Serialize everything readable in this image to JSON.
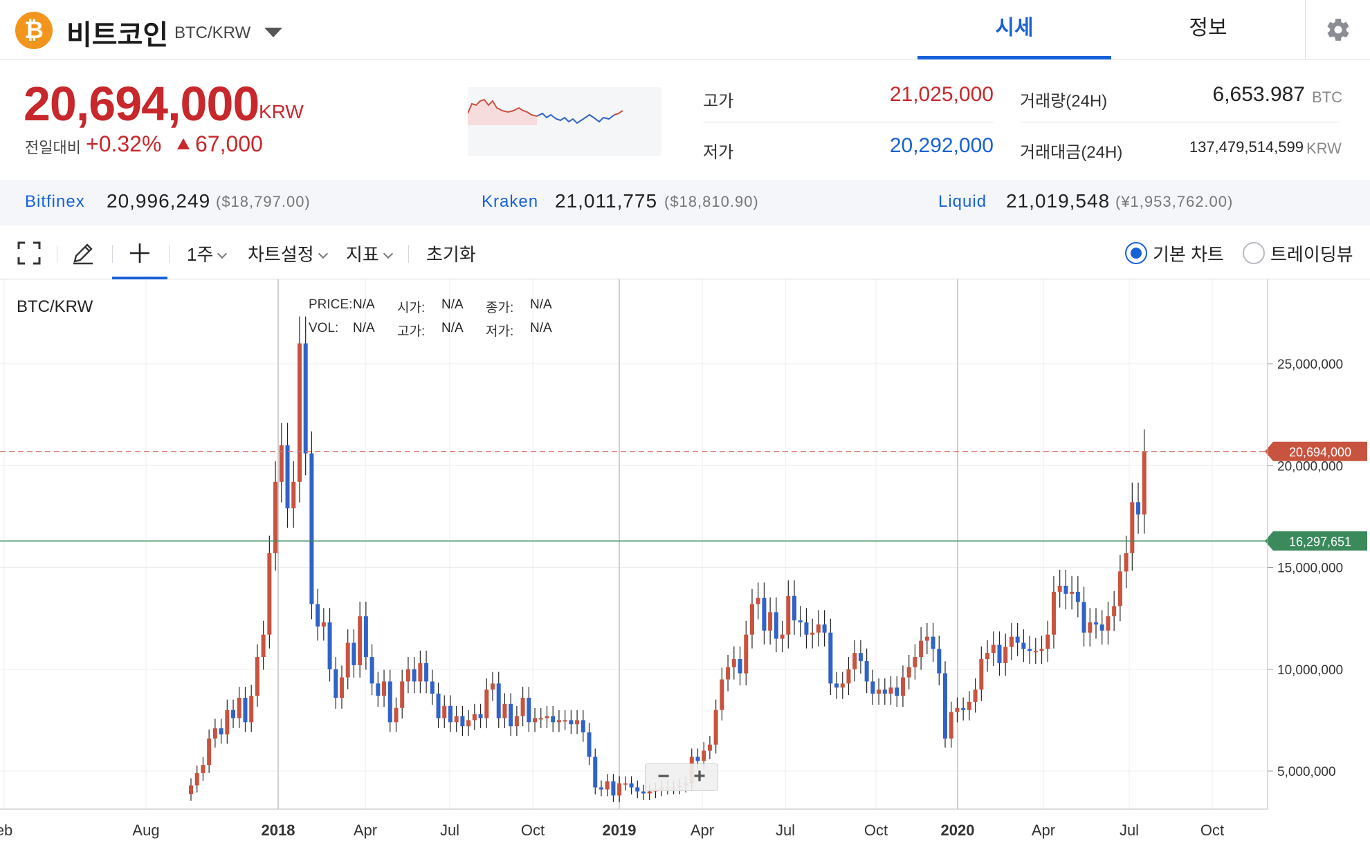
{
  "header": {
    "coin_symbol": "₿",
    "coin_name": "비트코인",
    "pair": "BTC/KRW",
    "tabs": [
      {
        "label": "시세"
      },
      {
        "label": "정보"
      }
    ]
  },
  "price": {
    "current": "20,694,000",
    "unit": "KRW",
    "change_label": "전일대비",
    "change_pct": "+0.32%",
    "change_amount": "67,000"
  },
  "stats": {
    "high_label": "고가",
    "high_value": "21,025,000",
    "low_label": "저가",
    "low_value": "20,292,000",
    "volume_label": "거래량(24H)",
    "volume_value": "6,653.987",
    "volume_unit": "BTC",
    "amount_label": "거래대금(24H)",
    "amount_value": "137,479,514,599",
    "amount_unit": "KRW"
  },
  "exchanges": [
    {
      "name": "Bitfinex",
      "value": "20,996,249",
      "usd": "($18,797.00)"
    },
    {
      "name": "Kraken",
      "value": "21,011,775",
      "usd": "($18,810.90)"
    },
    {
      "name": "Liquid",
      "value": "21,019,548",
      "usd": "(¥1,953,762.00)"
    }
  ],
  "toolbar": {
    "interval": "1주",
    "chart_settings": "차트설정",
    "indicators": "지표",
    "reset": "초기화",
    "radio_basic": "기본 차트",
    "radio_tradingview": "트레이딩뷰"
  },
  "chart_info": {
    "pair_title": "BTC/KRW",
    "price_label": "PRICE:",
    "price_value": "N/A",
    "open_label": "시가:",
    "open_value": "N/A",
    "close_label": "종가:",
    "close_value": "N/A",
    "vol_label": "VOL:",
    "vol_value": "N/A",
    "high_label": "고가:",
    "high_value": "N/A",
    "low_label": "저가:",
    "low_value": "N/A"
  },
  "colors": {
    "up": "#c8533f",
    "down": "#2f63c8",
    "accent": "#1761d8",
    "marker_green": "#3a8a5c"
  },
  "chart_data": {
    "type": "candlestick",
    "y_ticks": [
      "25,000,000",
      "20,000,000",
      "15,000,000",
      "10,000,000",
      "5,000,000"
    ],
    "x_labels": [
      "eb",
      "Aug",
      "2018",
      "Apr",
      "Jul",
      "Oct",
      "2019",
      "Apr",
      "Jul",
      "Oct",
      "2020",
      "Apr",
      "Jul",
      "Oct"
    ],
    "current_price_marker": "20,694,000",
    "horizontal_line_marker": "16,297,651",
    "closes": [
      4300000,
      4900000,
      5300000,
      6600000,
      7100000,
      6800000,
      8000000,
      7600000,
      8600000,
      7400000,
      8700000,
      10600000,
      11700000,
      15700000,
      19200000,
      21000000,
      17900000,
      19200000,
      26000000,
      20600000,
      13200000,
      12100000,
      12300000,
      10000000,
      8600000,
      9600000,
      11300000,
      10200000,
      12600000,
      10600000,
      9300000,
      8700000,
      9400000,
      7400000,
      8100000,
      9400000,
      10000000,
      9400000,
      10300000,
      9400000,
      8800000,
      7600000,
      8200000,
      7400000,
      7700000,
      7200000,
      7500000,
      7800000,
      7600000,
      9000000,
      9300000,
      7600000,
      8300000,
      7200000,
      7700000,
      8600000,
      7400000,
      7600000,
      7600000,
      7700000,
      7400000,
      7500000,
      7500000,
      7300000,
      7500000,
      6900000,
      5700000,
      4200000,
      4100000,
      4500000,
      3800000,
      4400000,
      4400000,
      4200000,
      4000000,
      3900000,
      4000000,
      4100000,
      4200000,
      4200000,
      4200000,
      4300000,
      4400000,
      5700000,
      5500000,
      6000000,
      6300000,
      8000000,
      9500000,
      10100000,
      10500000,
      9800000,
      11700000,
      13200000,
      13500000,
      11900000,
      12800000,
      11500000,
      11700000,
      13600000,
      12400000,
      12300000,
      11700000,
      11800000,
      12200000,
      11800000,
      9300000,
      9100000,
      9300000,
      10000000,
      10800000,
      10400000,
      9400000,
      8800000,
      9000000,
      8800000,
      9100000,
      8700000,
      9600000,
      10100000,
      10600000,
      11400000,
      11600000,
      11000000,
      9800000,
      6600000,
      7900000,
      8100000,
      8000000,
      8400000,
      9000000,
      10500000,
      10800000,
      11200000,
      10300000,
      11100000,
      11600000,
      11300000,
      11000000,
      10900000,
      10900000,
      11000000,
      11700000,
      13800000,
      14100000,
      13700000,
      13800000,
      13300000,
      11800000,
      12300000,
      12200000,
      11900000,
      12600000,
      13100000,
      14800000,
      15700000,
      18200000,
      17600000,
      20694000
    ]
  }
}
